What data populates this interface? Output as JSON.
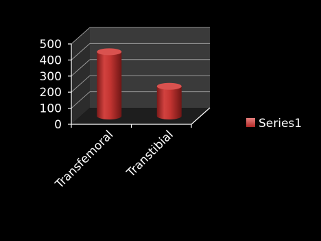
{
  "chart_data": {
    "type": "bar",
    "style": "3d-cylinder",
    "categories": [
      "Transfemoral",
      "Transtibial"
    ],
    "series": [
      {
        "name": "Series1",
        "values": [
          400,
          185
        ]
      }
    ],
    "y_ticks": [
      "0",
      "100",
      "200",
      "300",
      "400",
      "500"
    ],
    "ylim": [
      0,
      500
    ],
    "grid": true,
    "legend_position": "right",
    "colors": {
      "background": "#000000",
      "bar": "#c0302e",
      "wall": "#3a3a3a",
      "floor": "#1e1e1e",
      "gridline": "#9a9a9a",
      "axis": "#ffffff",
      "text": "#ffffff"
    }
  }
}
